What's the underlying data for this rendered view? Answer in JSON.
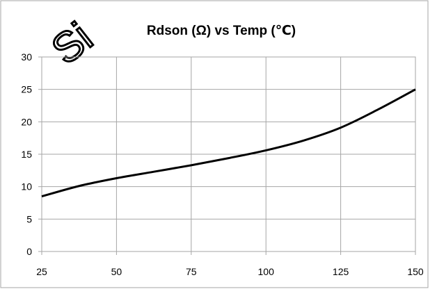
{
  "chart_data": {
    "type": "line",
    "title": "Rdson (Ω) vs Temp (℃)",
    "xlabel": "",
    "ylabel": "",
    "xlim": [
      25,
      150
    ],
    "ylim": [
      0,
      30
    ],
    "x_ticks": [
      25,
      50,
      75,
      100,
      125,
      150
    ],
    "y_ticks": [
      0,
      5,
      10,
      15,
      20,
      25,
      30
    ],
    "grid": true,
    "legend": "none",
    "series": [
      {
        "color": "#000000",
        "x": [
          25,
          37.5,
          50,
          62.5,
          75,
          87.5,
          100,
          112.5,
          125,
          137.5,
          150
        ],
        "y": [
          8.5,
          10.1,
          11.3,
          12.3,
          13.3,
          14.4,
          15.6,
          17.1,
          19.1,
          21.9,
          25.0
        ]
      }
    ],
    "watermark_text": "Si"
  }
}
